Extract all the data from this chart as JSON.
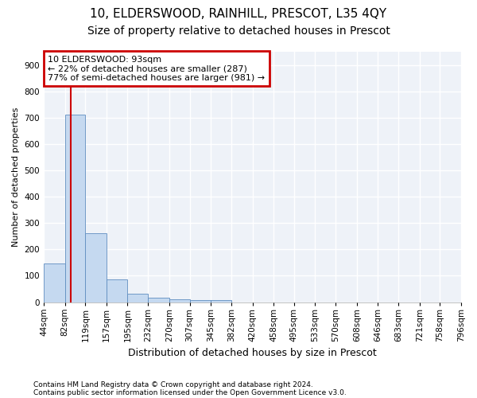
{
  "title_line1": "10, ELDERSWOOD, RAINHILL, PRESCOT, L35 4QY",
  "title_line2": "Size of property relative to detached houses in Prescot",
  "xlabel": "Distribution of detached houses by size in Prescot",
  "ylabel": "Number of detached properties",
  "footer_line1": "Contains HM Land Registry data © Crown copyright and database right 2024.",
  "footer_line2": "Contains public sector information licensed under the Open Government Licence v3.0.",
  "bin_edges": [
    44,
    82,
    119,
    157,
    195,
    232,
    270,
    307,
    345,
    382,
    420,
    458,
    495,
    533,
    570,
    608,
    646,
    683,
    721,
    758,
    796
  ],
  "bar_heights": [
    148,
    712,
    262,
    85,
    33,
    18,
    10,
    7,
    7,
    0,
    0,
    0,
    0,
    0,
    0,
    0,
    0,
    0,
    0,
    0
  ],
  "bar_color": "#c5d9f0",
  "bar_edge_color": "#5f8dc0",
  "property_size": 93,
  "vline_color": "#cc0000",
  "annotation_line1": "10 ELDERSWOOD: 93sqm",
  "annotation_line2": "← 22% of detached houses are smaller (287)",
  "annotation_line3": "77% of semi-detached houses are larger (981) →",
  "annotation_box_color": "#cc0000",
  "ylim": [
    0,
    950
  ],
  "yticks": [
    0,
    100,
    200,
    300,
    400,
    500,
    600,
    700,
    800,
    900
  ],
  "background_color": "#eef2f8",
  "grid_color": "#ffffff",
  "title_fontsize": 11,
  "subtitle_fontsize": 10,
  "ylabel_fontsize": 8,
  "xlabel_fontsize": 9,
  "tick_fontsize": 7.5,
  "annotation_fontsize": 8,
  "footer_fontsize": 6.5
}
